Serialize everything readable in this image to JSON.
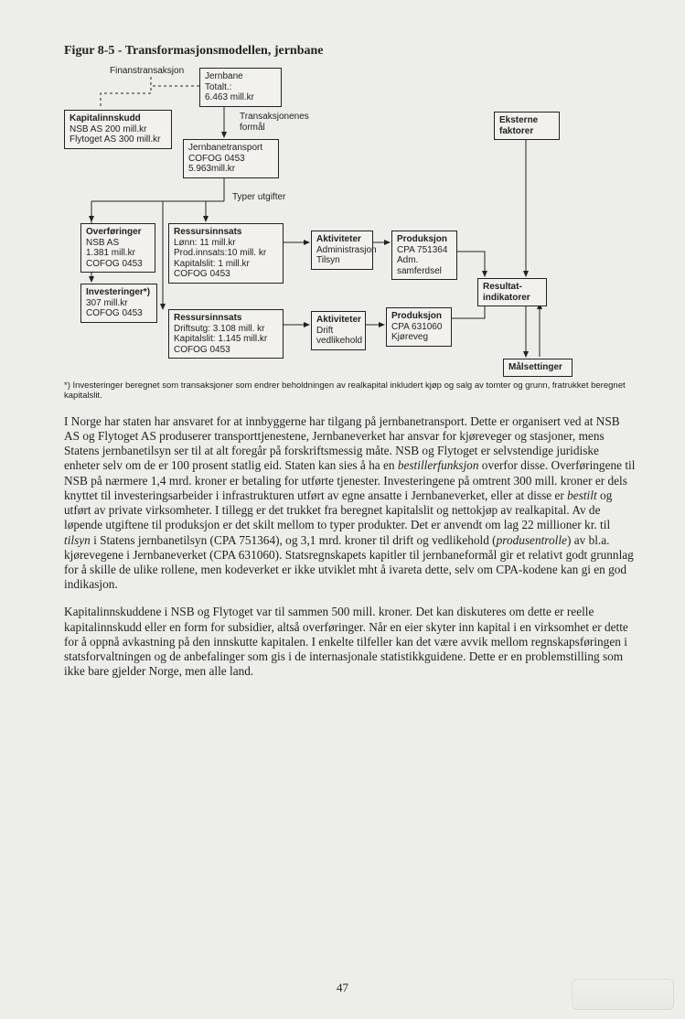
{
  "figure": {
    "title": "Figur 8-5 - Transformasjonsmodellen, jernbane",
    "labels": {
      "finanstransaksjon": "Finanstransaksjon",
      "transaksjonenes_formal": "Transaksjonenes\nformål",
      "typer_utgifter": "Typer utgifter"
    },
    "boxes": {
      "jernbane_totalt": "Jernbane\nTotalt.:\n6.463 mill.kr",
      "kapitalinnskudd": "Kapitalinnskudd\nNSB AS 200 mill.kr\nFlytoget AS 300 mill.kr",
      "jernbanetransport": "Jernbanetransport\nCOFOG 0453\n5.963mill.kr",
      "eksterne_faktorer": "Eksterne\nfaktorer",
      "overforinger": "Overføringer\nNSB AS\n1.381 mill.kr\nCOFOG 0453",
      "ressursinnsats1": "Ressursinnsats\nLønn: 11 mill.kr\nProd.innsats:10 mill. kr\nKapitalslit: 1 mill.kr\nCOFOG 0453",
      "aktiviteter1": "Aktiviteter\nAdministrasjon\nTilsyn",
      "produksjon1": "Produksjon\nCPA 751364\nAdm.\nsamferdsel",
      "investeringer": "Investeringer*)\n307 mill.kr\nCOFOG 0453",
      "ressursinnsats2": "Ressursinnsats\nDriftsutg: 3.108 mill. kr\nKapitalslit: 1.145 mill.kr\nCOFOG 0453",
      "aktiviteter2": "Aktiviteter\nDrift\nvedlikehold",
      "produksjon2": "Produksjon\nCPA 631060\nKjøreveg",
      "resultatindikatorer": "Resultat-\nindikatorer",
      "malsettinger": "Målsettinger"
    },
    "footnote": "*) Investeringer beregnet som transaksjoner som endrer beholdningen av realkapital inkludert kjøp og salg av tomter og grunn, fratrukket beregnet kapitalslit."
  },
  "paragraphs": {
    "p1": "I Norge har staten har ansvaret for at innbyggerne har tilgang på jernbanetransport. Dette er organisert ved at NSB AS og Flytoget AS produserer transporttjenestene, Jernbaneverket har ansvar for kjøreveger og stasjoner, mens Statens jernbanetilsyn ser til at alt foregår på forskriftsmessig måte. NSB og Flytoget er selvstendige juridiske enheter selv om de er 100 prosent statlig eid. Staten kan sies å ha en ",
    "p1_it1": "bestillerfunksjon",
    "p1b": " overfor disse. Overføringene til NSB på nærmere 1,4 mrd. kroner er betaling for utførte tjenester. Investeringene på omtrent 300 mill. kroner er dels knyttet til investeringsarbeider i infrastrukturen utført av egne ansatte i Jernbaneverket, eller at disse er ",
    "p1_it2": "bestilt",
    "p1c": " og utført av private virksomheter. I tillegg er det trukket fra beregnet kapitalslit og nettokjøp av realkapital. Av de løpende utgiftene til produksjon er det skilt mellom to typer produkter. Det er anvendt om lag 22 millioner kr. til ",
    "p1_it3": "tilsyn",
    "p1d": " i Statens jernbanetilsyn (CPA 751364), og 3,1 mrd. kroner til drift og vedlikehold (",
    "p1_it4": "produsentrolle",
    "p1e": ") av bl.a. kjørevegene i Jernbaneverket (CPA 631060). Statsregnskapets kapitler til jernbaneformål gir et relativt godt grunnlag for å skille de ulike rollene, men kodeverket er ikke utviklet mht å ivareta dette, selv om CPA-kodene kan gi en god indikasjon.",
    "p2": "Kapitalinnskuddene i NSB og Flytoget var til sammen 500 mill. kroner. Det kan diskuteres om dette er reelle kapitalinnskudd eller en form for subsidier, altså overføringer. Når en eier skyter inn kapital i en virksomhet er dette for å oppnå avkastning på den innskutte kapitalen. I enkelte tilfeller kan det være avvik mellom regnskapsføringen i statsforvaltningen og de anbefalinger som gis i de internasjonale statistikkguidene. Dette er en problemstilling som ikke bare gjelder Norge, men alle land."
  },
  "page_number": "47",
  "diagram_style": {
    "border_color": "#222222",
    "box_bg": "#f2f1ed",
    "label_fontsize": 10,
    "font_family": "Arial"
  }
}
